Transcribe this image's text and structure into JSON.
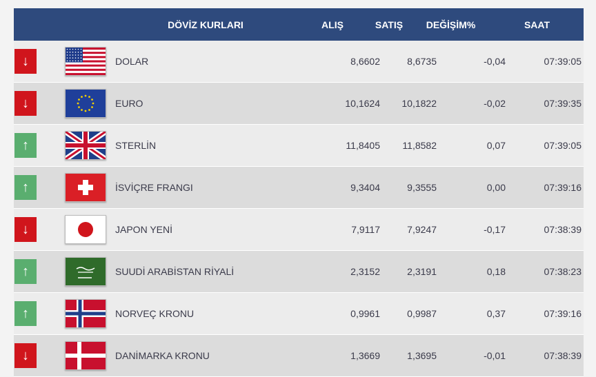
{
  "header": {
    "title": "DÖVİZ KURLARI",
    "alis": "ALIŞ",
    "satis": "SATIŞ",
    "degisim": "DEĞİŞİM%",
    "saat": "SAAT"
  },
  "colors": {
    "header_bg": "#2e4a7d",
    "down": "#d0151c",
    "up": "#5aae6f"
  },
  "rows": [
    {
      "direction": "down",
      "flag": "us-flag",
      "name": "DOLAR",
      "alis": "8,6602",
      "satis": "8,6735",
      "degisim": "-0,04",
      "saat": "07:39:05"
    },
    {
      "direction": "down",
      "flag": "eu-flag",
      "name": "EURO",
      "alis": "10,1624",
      "satis": "10,1822",
      "degisim": "-0,02",
      "saat": "07:39:35"
    },
    {
      "direction": "up",
      "flag": "gb-flag",
      "name": "STERLİN",
      "alis": "11,8405",
      "satis": "11,8582",
      "degisim": "0,07",
      "saat": "07:39:05"
    },
    {
      "direction": "up",
      "flag": "ch-flag",
      "name": "İSVİÇRE FRANGI",
      "alis": "9,3404",
      "satis": "9,3555",
      "degisim": "0,00",
      "saat": "07:39:16"
    },
    {
      "direction": "down",
      "flag": "jp-flag",
      "name": "JAPON YENİ",
      "alis": "7,9117",
      "satis": "7,9247",
      "degisim": "-0,17",
      "saat": "07:38:39"
    },
    {
      "direction": "up",
      "flag": "sa-flag",
      "name": "SUUDİ ARABİSTAN RİYALİ",
      "alis": "2,3152",
      "satis": "2,3191",
      "degisim": "0,18",
      "saat": "07:38:23"
    },
    {
      "direction": "up",
      "flag": "no-flag",
      "name": "NORVEÇ KRONU",
      "alis": "0,9961",
      "satis": "0,9987",
      "degisim": "0,37",
      "saat": "07:39:16"
    },
    {
      "direction": "down",
      "flag": "dk-flag",
      "name": "DANİMARKA KRONU",
      "alis": "1,3669",
      "satis": "1,3695",
      "degisim": "-0,01",
      "saat": "07:38:39"
    }
  ]
}
